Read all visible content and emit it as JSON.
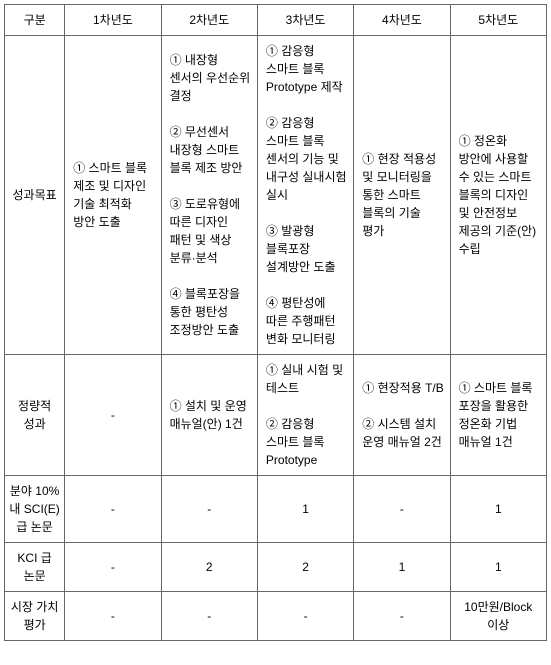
{
  "headers": {
    "col0": "구분",
    "col1": "1차년도",
    "col2": "2차년도",
    "col3": "3차년도",
    "col4": "4차년도",
    "col5": "5차년도"
  },
  "rows": {
    "r1": {
      "label": "성과목표",
      "y1": "① 스마트 블록 제조 및 디자인 기술 최적화 방안 도출",
      "y2": "① 내장형 센서의 우선순위 결정\n\n② 무선센서 내장형 스마트 블록 제조 방안\n\n③ 도로유형에 따른 디자인 패턴 및 색상 분류·분석\n\n④ 블록포장을 통한 평탄성 조정방안 도출",
      "y3": "① 감응형 스마트 블록 Prototype 제작\n\n② 감응형 스마트 블록 센서의 기능 및 내구성 실내시험 실시\n\n③ 발광형 블록포장 설계방안 도출\n\n④ 평탄성에 따른 주행패턴 변화 모니터링",
      "y4": "① 현장 적용성 및 모니터링을 통한 스마트 블록의 기술 평가",
      "y5": "① 정온화 방안에 사용할 수 있는 스마트 블록의 디자인 및 안전정보 제공의 기준(안) 수립"
    },
    "r2": {
      "label": "정량적 성과",
      "y1": "-",
      "y2": "① 설치 및 운영 매뉴얼(안) 1건",
      "y3": "① 실내 시험 및 테스트\n\n② 감응형 스마트 블록 Prototype",
      "y4": "① 현장적용 T/B\n\n② 시스템 설치 운영 매뉴얼 2건",
      "y5": "① 스마트 블록 포장을 활용한 정온화 기법 매뉴얼 1건"
    },
    "r3": {
      "label": "분야 10% 내 SCI(E)급 논문",
      "y1": "-",
      "y2": "-",
      "y3": "1",
      "y4": "-",
      "y5": "1"
    },
    "r4": {
      "label": "KCI 급 논문",
      "y1": "-",
      "y2": "2",
      "y3": "2",
      "y4": "1",
      "y5": "1"
    },
    "r5": {
      "label": "시장 가치 평가",
      "y1": "-",
      "y2": "-",
      "y3": "-",
      "y4": "-",
      "y5": "10만원/Block 이상"
    }
  }
}
